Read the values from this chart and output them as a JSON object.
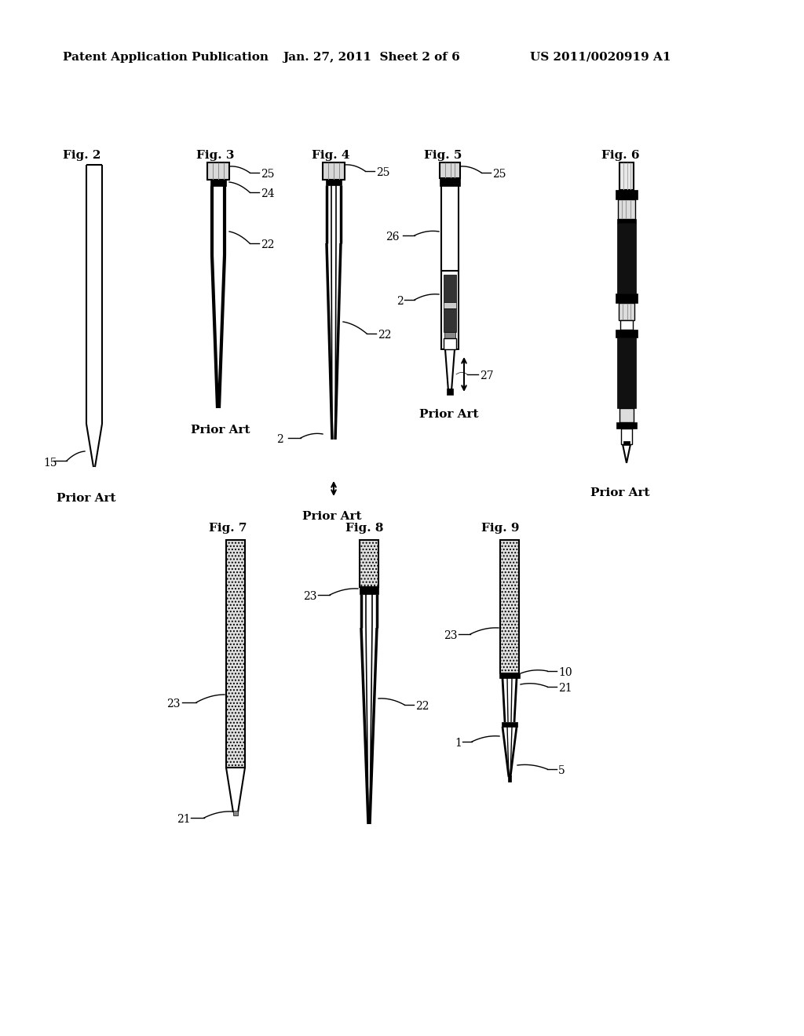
{
  "header_left": "Patent Application Publication",
  "header_center": "Jan. 27, 2011  Sheet 2 of 6",
  "header_right": "US 2011/0020919 A1",
  "background_color": "#ffffff"
}
